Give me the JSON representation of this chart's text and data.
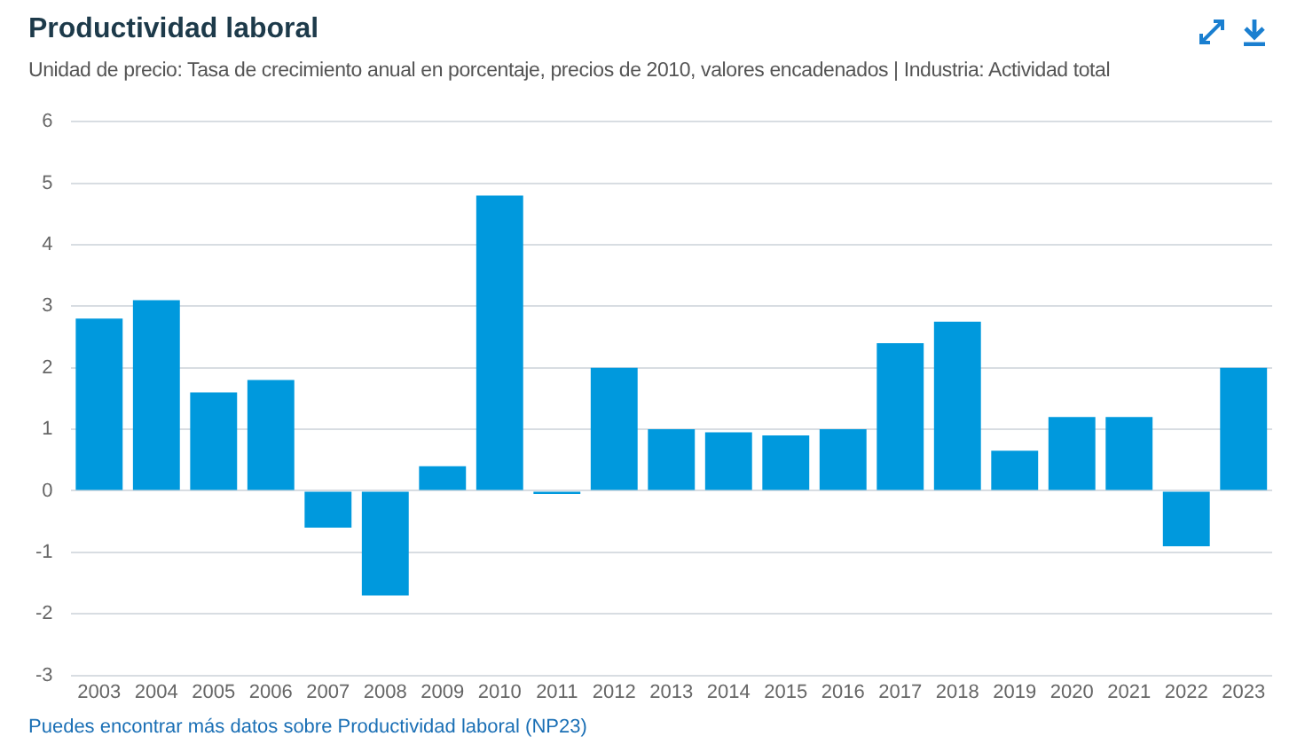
{
  "chart_data": {
    "type": "bar",
    "title": "Productividad laboral",
    "subtitle": "Unidad de precio: Tasa de crecimiento anual en porcentaje, precios de 2010, valores encadenados | Industria: Actividad total",
    "categories": [
      "2003",
      "2004",
      "2005",
      "2006",
      "2007",
      "2008",
      "2009",
      "2010",
      "2011",
      "2012",
      "2013",
      "2014",
      "2015",
      "2016",
      "2017",
      "2018",
      "2019",
      "2020",
      "2021",
      "2022",
      "2023"
    ],
    "values": [
      2.8,
      3.1,
      1.6,
      1.8,
      -0.6,
      -1.7,
      0.4,
      4.8,
      -0.05,
      2.0,
      1.0,
      0.95,
      0.9,
      1.0,
      2.4,
      2.75,
      0.65,
      1.2,
      1.2,
      -0.9,
      2.0
    ],
    "color": "#0099dd",
    "ylim": [
      -3,
      6
    ],
    "yticks": [
      -3,
      -2,
      -1,
      0,
      1,
      2,
      3,
      4,
      5,
      6
    ],
    "grid": "y",
    "legend": false,
    "annotations": [
      "Puedes encontrar más datos sobre Productividad laboral (NP23)"
    ]
  }
}
